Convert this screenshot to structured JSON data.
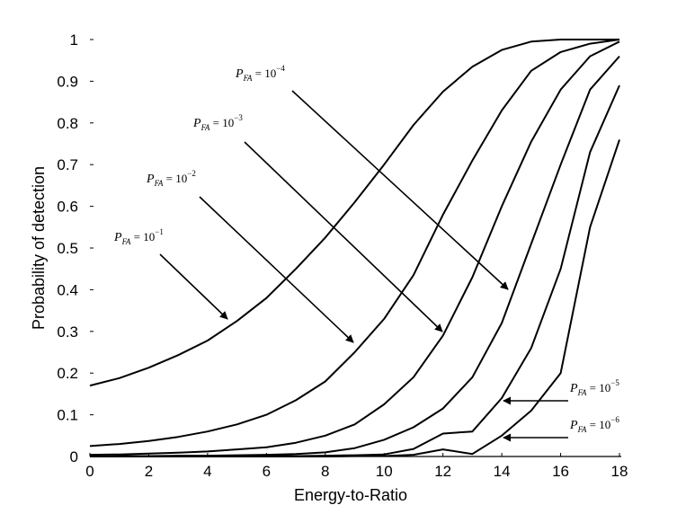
{
  "chart_data": {
    "type": "line",
    "title": "",
    "xlabel": "Energy-to-Ratio",
    "ylabel": "Probability of detection",
    "xlim": [
      0,
      18
    ],
    "ylim": [
      0,
      1
    ],
    "xticks": [
      "0",
      "2",
      "4",
      "6",
      "8",
      "10",
      "12",
      "14",
      "16",
      "18"
    ],
    "yticks": [
      "0",
      "0.1",
      "0.2",
      "0.3",
      "0.4",
      "0.5",
      "0.6",
      "0.7",
      "0.8",
      "0.9",
      "1"
    ],
    "grid": false,
    "x": [
      0,
      1,
      2,
      3,
      4,
      5,
      6,
      7,
      8,
      9,
      10,
      11,
      12,
      13,
      14,
      15,
      16,
      17,
      18
    ],
    "series": [
      {
        "values": [
          0.17,
          0.188,
          0.213,
          0.243,
          0.278,
          0.325,
          0.38,
          0.45,
          0.525,
          0.61,
          0.7,
          0.795,
          0.875,
          0.935,
          0.975,
          0.995,
          1.0,
          1.0,
          1.0
        ]
      },
      {
        "values": [
          0.025,
          0.03,
          0.037,
          0.047,
          0.06,
          0.077,
          0.1,
          0.135,
          0.18,
          0.25,
          0.33,
          0.435,
          0.58,
          0.71,
          0.83,
          0.925,
          0.97,
          0.99,
          1.0
        ]
      },
      {
        "values": [
          0.004,
          0.005,
          0.007,
          0.009,
          0.012,
          0.017,
          0.022,
          0.033,
          0.05,
          0.077,
          0.125,
          0.19,
          0.29,
          0.43,
          0.6,
          0.755,
          0.88,
          0.96,
          0.995
        ]
      },
      {
        "values": [
          0.0,
          0.001,
          0.001,
          0.002,
          0.002,
          0.003,
          0.004,
          0.006,
          0.01,
          0.02,
          0.04,
          0.07,
          0.115,
          0.19,
          0.32,
          0.51,
          0.7,
          0.88,
          0.96
        ]
      },
      {
        "values": [
          0.0,
          0.0,
          0.0,
          0.0,
          0.0,
          0.0,
          0.001,
          0.001,
          0.002,
          0.003,
          0.005,
          0.018,
          0.055,
          0.06,
          0.14,
          0.26,
          0.45,
          0.73,
          0.89
        ]
      },
      {
        "values": [
          0.0,
          0.0,
          0.0,
          0.0,
          0.0,
          0.0,
          0.0,
          0.0,
          0.0,
          0.001,
          0.001,
          0.004,
          0.017,
          0.006,
          0.05,
          0.11,
          0.2,
          0.55,
          0.76
        ]
      }
    ],
    "annotations": [
      {
        "prefix": "P",
        "sub": "FA",
        "eq": " = 10",
        "exp": "−1"
      },
      {
        "prefix": "P",
        "sub": "FA",
        "eq": " = 10",
        "exp": "−2"
      },
      {
        "prefix": "P",
        "sub": "FA",
        "eq": " = 10",
        "exp": "−3"
      },
      {
        "prefix": "P",
        "sub": "FA",
        "eq": " = 10",
        "exp": "−4"
      },
      {
        "prefix": "P",
        "sub": "FA",
        "eq": " = 10",
        "exp": "−5"
      },
      {
        "prefix": "P",
        "sub": "FA",
        "eq": " = 10",
        "exp": "−6"
      }
    ]
  }
}
